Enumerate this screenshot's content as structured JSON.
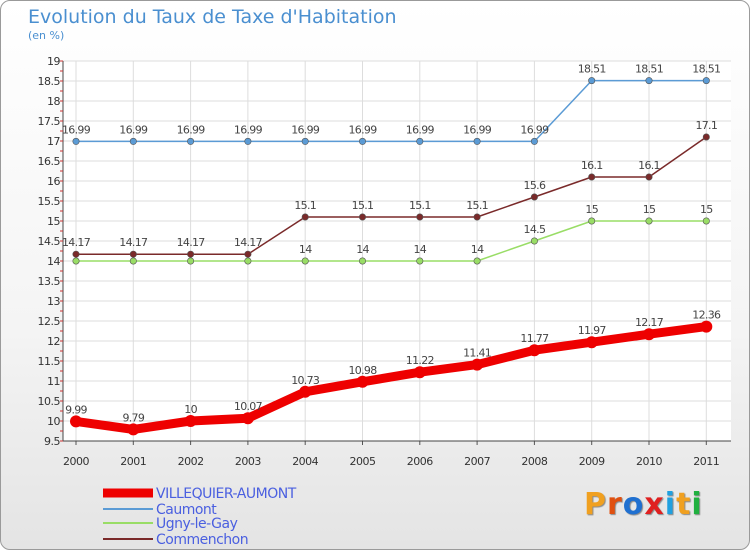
{
  "title": "Evolution du Taux de Taxe d'Habitation",
  "subtitle": "(en %)",
  "logo": {
    "letters": [
      "P",
      "r",
      "o",
      "x",
      "i",
      "t",
      "i"
    ],
    "colors": [
      "#f0a020",
      "#e05010",
      "#2070d0",
      "#e02020",
      "#20a0e0",
      "#f0a020",
      "#20b040"
    ]
  },
  "chart_data": {
    "type": "line",
    "x": [
      "2000",
      "2001",
      "2002",
      "2003",
      "2004",
      "2005",
      "2006",
      "2007",
      "2008",
      "2009",
      "2010",
      "2011"
    ],
    "ylim": [
      9.5,
      19
    ],
    "yticks": [
      "9.5",
      "10",
      "10.5",
      "11",
      "11.5",
      "12",
      "12.5",
      "13",
      "13.5",
      "14",
      "14.5",
      "15",
      "15.5",
      "16",
      "16.5",
      "17",
      "17.5",
      "18",
      "18.5",
      "19"
    ],
    "grid": true,
    "legend_position": "bottom-left",
    "series": [
      {
        "name": "VILLEQUIER-AUMONT",
        "color": "#ee0000",
        "values": [
          9.99,
          9.79,
          10,
          10.07,
          10.73,
          10.98,
          11.22,
          11.41,
          11.77,
          11.97,
          12.17,
          12.36
        ],
        "labels": [
          "9.99",
          "9.79",
          "10",
          "10.07",
          "10.73",
          "10.98",
          "11.22",
          "11.41",
          "11.77",
          "11.97",
          "12.17",
          "12.36"
        ]
      },
      {
        "name": "Caumont",
        "color": "#5b9bd5",
        "values": [
          16.99,
          16.99,
          16.99,
          16.99,
          16.99,
          16.99,
          16.99,
          16.99,
          16.99,
          18.51,
          18.51,
          18.51
        ],
        "labels": [
          "16.99",
          "16.99",
          "16.99",
          "16.99",
          "16.99",
          "16.99",
          "16.99",
          "16.99",
          "16.99",
          "18.51",
          "18.51",
          "18.51"
        ]
      },
      {
        "name": "Ugny-le-Gay",
        "color": "#99dd66",
        "values": [
          14,
          14,
          14,
          14,
          14,
          14,
          14,
          14,
          14.5,
          15,
          15,
          15
        ],
        "labels": [
          "",
          "",
          "",
          "",
          "14",
          "14",
          "14",
          "14",
          "14.5",
          "15",
          "15",
          "15"
        ]
      },
      {
        "name": "Commenchon",
        "color": "#7a2a2a",
        "values": [
          14.17,
          14.17,
          14.17,
          14.17,
          15.1,
          15.1,
          15.1,
          15.1,
          15.6,
          16.1,
          16.1,
          17.1
        ],
        "labels": [
          "14.17",
          "14.17",
          "14.17",
          "14.17",
          "15.1",
          "15.1",
          "15.1",
          "15.1",
          "15.6",
          "16.1",
          "16.1",
          "17.1"
        ]
      }
    ]
  }
}
